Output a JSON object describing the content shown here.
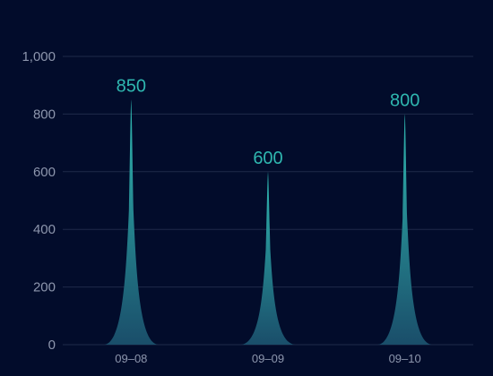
{
  "chart_data": {
    "type": "bar",
    "bar_style": "pictorial-spike",
    "categories": [
      "09–08",
      "09–09",
      "09–10"
    ],
    "values": [
      850,
      600,
      800
    ],
    "data_labels": [
      "850",
      "600",
      "800"
    ],
    "y_ticks": [
      "0",
      "200",
      "400",
      "600",
      "800",
      "1,000"
    ],
    "ylim": [
      0,
      1000
    ],
    "grid": true,
    "colors": {
      "background": "#020c2b",
      "spike_top": "#2fb7b0",
      "spike_bottom": "#1a4e6a",
      "label": "#2fb7b0",
      "tick": "#8d96ad",
      "grid": "#1f2a4a"
    }
  }
}
